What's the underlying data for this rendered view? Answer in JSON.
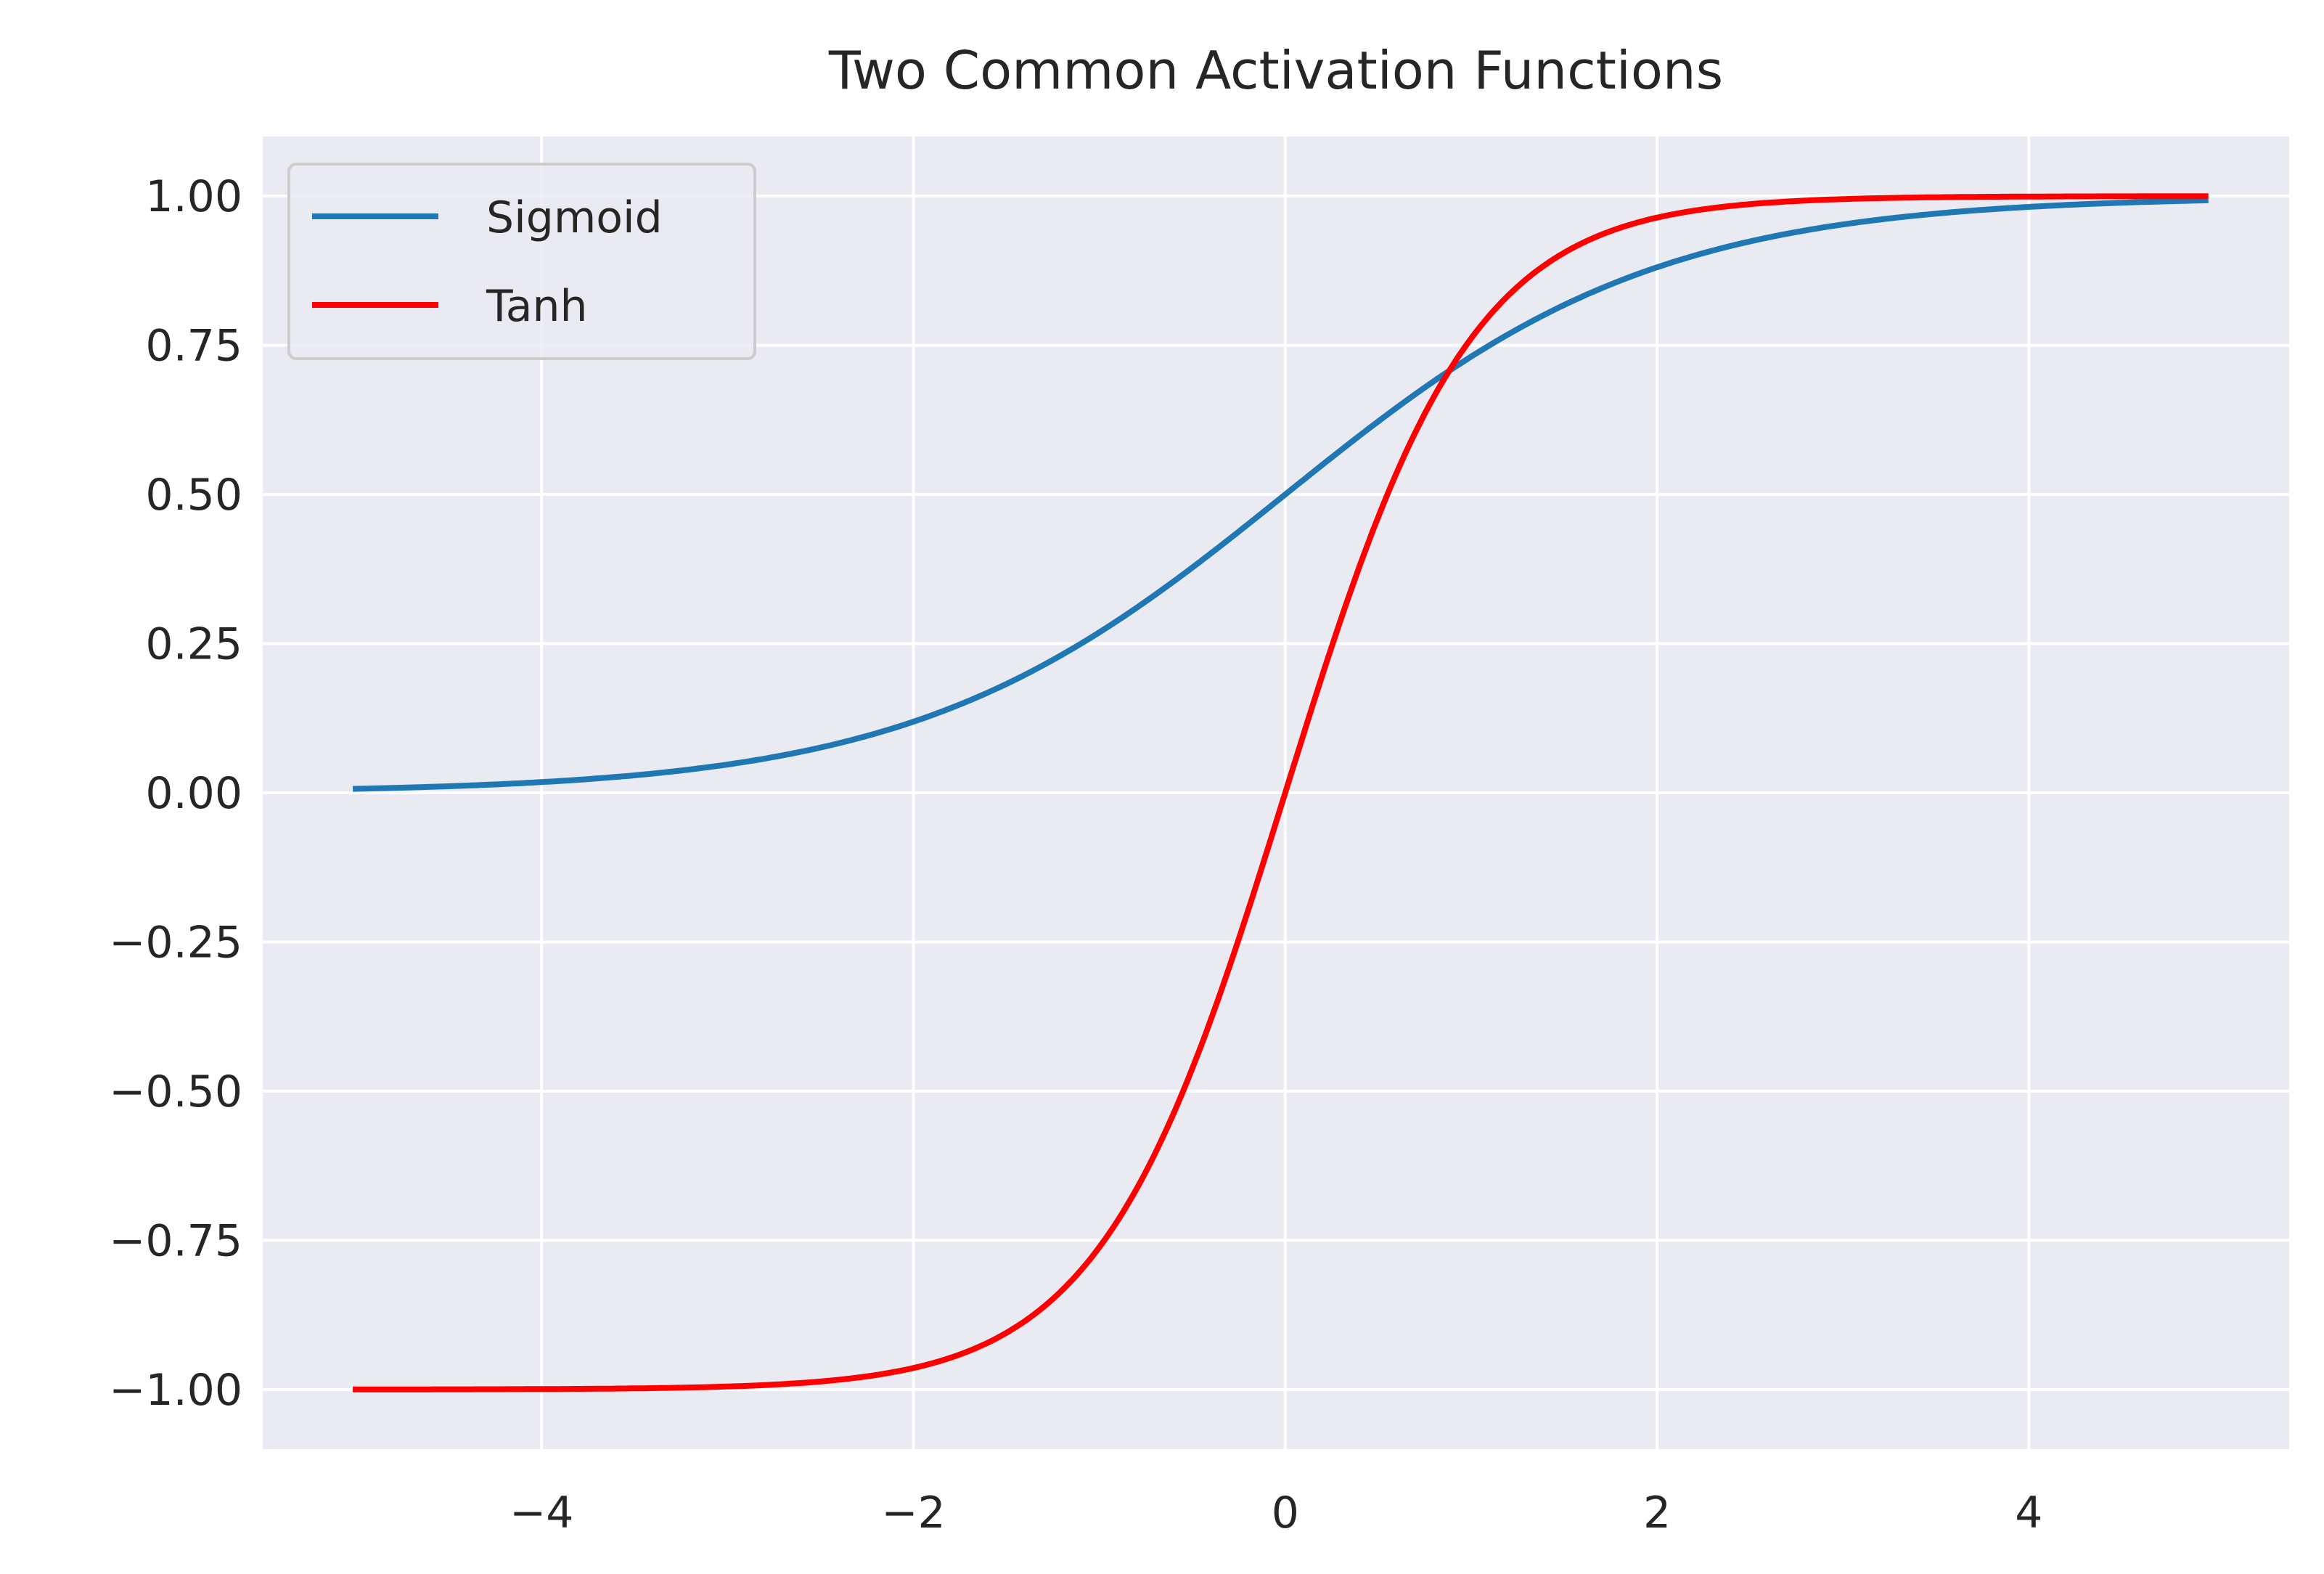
{
  "chart_data": {
    "type": "line",
    "title": "Two Common Activation Functions",
    "xlabel": "",
    "ylabel": "",
    "xlim": [
      -5.5,
      5.4
    ],
    "ylim": [
      -1.1,
      1.1
    ],
    "x_ticks": [
      -4,
      -2,
      0,
      2,
      4
    ],
    "x_tick_labels": [
      "−4",
      "−2",
      "0",
      "2",
      "4"
    ],
    "y_ticks": [
      1.0,
      0.75,
      0.5,
      0.25,
      0.0,
      -0.25,
      -0.5,
      -0.75,
      -1.0
    ],
    "y_tick_labels": [
      "1.00",
      "0.75",
      "0.50",
      "0.25",
      "0.00",
      "−0.25",
      "−0.50",
      "−0.75",
      "−1.00"
    ],
    "grid": true,
    "legend_position": "top-left",
    "x": [
      -5.0,
      -4.5,
      -4.0,
      -3.5,
      -3.0,
      -2.5,
      -2.0,
      -1.75,
      -1.5,
      -1.25,
      -1.0,
      -0.75,
      -0.5,
      -0.25,
      0.0,
      0.25,
      0.5,
      0.75,
      1.0,
      1.25,
      1.5,
      1.75,
      2.0,
      2.5,
      3.0,
      3.5,
      4.0,
      4.5,
      4.95
    ],
    "series": [
      {
        "name": "Sigmoid",
        "color": "#1f77b4",
        "values": [
          0.0067,
          0.011,
          0.018,
          0.029,
          0.047,
          0.076,
          0.119,
          0.148,
          0.182,
          0.223,
          0.269,
          0.321,
          0.378,
          0.438,
          0.5,
          0.562,
          0.622,
          0.679,
          0.731,
          0.777,
          0.818,
          0.852,
          0.881,
          0.924,
          0.953,
          0.971,
          0.982,
          0.989,
          0.993
        ]
      },
      {
        "name": "Tanh",
        "color": "#ff0000",
        "values": [
          -0.9999,
          -0.9998,
          -0.9993,
          -0.9982,
          -0.9951,
          -0.9866,
          -0.964,
          -0.9413,
          -0.9051,
          -0.8483,
          -0.7616,
          -0.6351,
          -0.4621,
          -0.2449,
          0.0,
          0.2449,
          0.4621,
          0.6351,
          0.7616,
          0.8483,
          0.9051,
          0.9413,
          0.964,
          0.9866,
          0.9951,
          0.9982,
          0.9993,
          0.9998,
          0.9999
        ]
      }
    ]
  }
}
